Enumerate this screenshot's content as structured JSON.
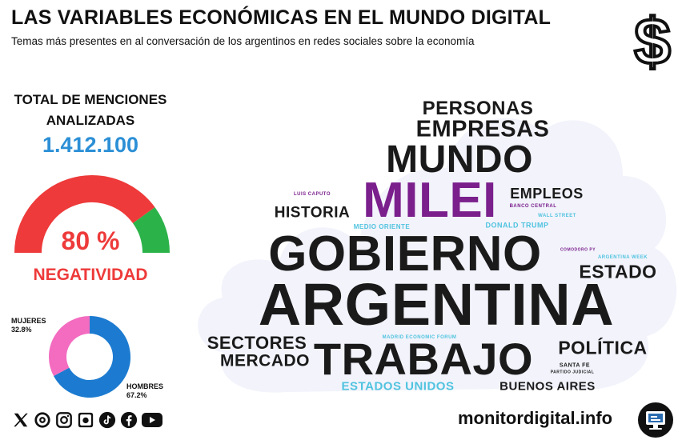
{
  "header": {
    "title": "LAS VARIABLES ECONÓMICAS EN EL MUNDO DIGITAL",
    "subtitle": "Temas más presentes en al conversación de los argentinos en redes sociales sobre la economía",
    "icon": "dollar-sign-icon"
  },
  "stats": {
    "total_label": "TOTAL DE MENCIONES ANALIZADAS",
    "total_value": "1.412.100",
    "negativity_value": 0.8,
    "negativity_pct": "80 %",
    "negativity_label": "NEGATIVIDAD",
    "women_label": "MUJERES",
    "women_pct": "32.8%",
    "women_value": 32.8,
    "men_label": "HOMBRES",
    "men_pct": "67.2%",
    "men_value": 67.2
  },
  "colors": {
    "accent_blue": "#2b8fd6",
    "negative_red": "#ee3a3a",
    "positive_green": "#2bb34a",
    "women_pink": "#f36cc0",
    "men_blue": "#1c7bd0",
    "cloud_bg": "#f2f3fb",
    "word_dark": "#1a1a1a",
    "word_purple": "#7a1f8c",
    "word_cyan": "#4fc3df"
  },
  "social_icons": [
    "x-icon",
    "threads-icon",
    "instagram-icon",
    "camera-icon",
    "tiktok-icon",
    "facebook-icon",
    "youtube-icon"
  ],
  "footer": {
    "site": "monitordigital.info",
    "icon": "monitor-icon"
  },
  "word_cloud": [
    {
      "text": "PERSONAS",
      "color": "#1a1a1a"
    },
    {
      "text": "EMPRESAS",
      "color": "#1a1a1a"
    },
    {
      "text": "MUNDO",
      "color": "#1a1a1a"
    },
    {
      "text": "MILEI",
      "color": "#7a1f8c"
    },
    {
      "text": "EMPLEOS",
      "color": "#1a1a1a"
    },
    {
      "text": "HISTORIA",
      "color": "#1a1a1a"
    },
    {
      "text": "BANCO CENTRAL",
      "color": "#7a1f8c"
    },
    {
      "text": "WALL STREET",
      "color": "#4fc3df"
    },
    {
      "text": "DONALD TRUMP",
      "color": "#4fc3df"
    },
    {
      "text": "MEDIO ORIENTE",
      "color": "#4fc3df"
    },
    {
      "text": "LUIS CAPUTO",
      "color": "#7a1f8c"
    },
    {
      "text": "GOBIERNO",
      "color": "#1a1a1a"
    },
    {
      "text": "ESTADO",
      "color": "#1a1a1a"
    },
    {
      "text": "ARGENTINA WEEK",
      "color": "#4fc3df"
    },
    {
      "text": "ARGENTINA",
      "color": "#1a1a1a"
    },
    {
      "text": "SECTORES",
      "color": "#1a1a1a"
    },
    {
      "text": "MERCADO",
      "color": "#1a1a1a"
    },
    {
      "text": "TRABAJO",
      "color": "#1a1a1a"
    },
    {
      "text": "POLÍTICA",
      "color": "#1a1a1a"
    },
    {
      "text": "SANTA FE",
      "color": "#1a1a1a"
    },
    {
      "text": "MADRID ECONOMIC FORUM",
      "color": "#4fc3df"
    },
    {
      "text": "ESTADOS UNIDOS",
      "color": "#4fc3df"
    },
    {
      "text": "BUENOS AIRES",
      "color": "#1a1a1a"
    },
    {
      "text": "COMODORO PY",
      "color": "#7a1f8c"
    },
    {
      "text": "PARTIDO JUDICIAL",
      "color": "#1a1a1a"
    }
  ]
}
